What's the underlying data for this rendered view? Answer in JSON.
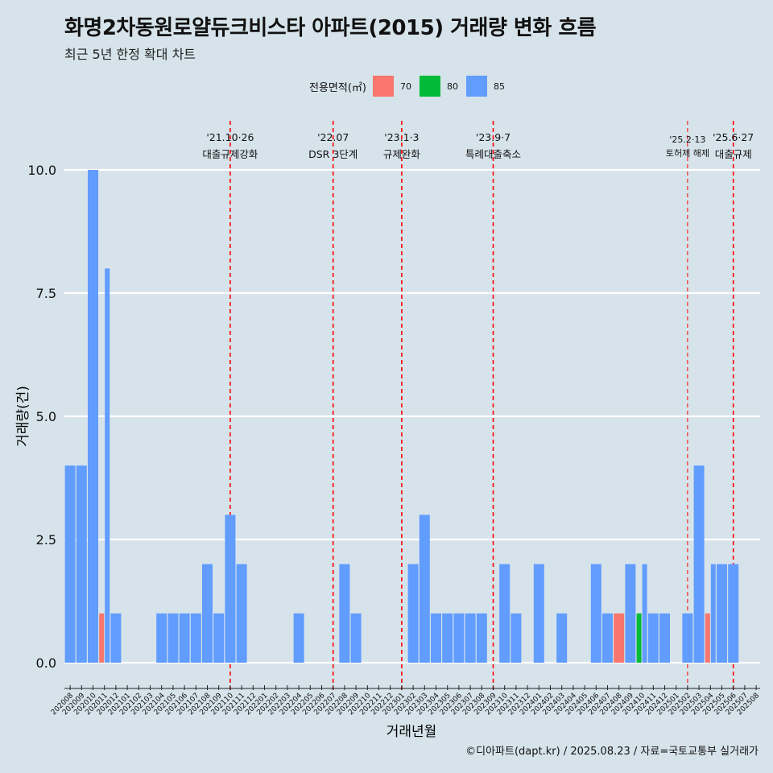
{
  "title": "화명2차동원로얄듀크비스타 아파트(2015) 거래량 변화 흐름",
  "subtitle": "최근 5년 한정 확대 차트",
  "caption": "©디아파트(dapt.kr) / 2025.08.23 / 자료=국토교통부 실거래가",
  "legend": {
    "title": "전용면적(㎡)",
    "items": [
      {
        "label": "70",
        "color": "#f8766d"
      },
      {
        "label": "80",
        "color": "#00ba38"
      },
      {
        "label": "85",
        "color": "#619cff"
      }
    ]
  },
  "chart_data": {
    "type": "bar",
    "stacked": true,
    "xlabel": "거래년월",
    "ylabel": "거래량(건)",
    "ylim": [
      0,
      10
    ],
    "yticks": [
      "0.0",
      "2.5",
      "5.0",
      "7.5",
      "10.0"
    ],
    "grid": "horizontal",
    "legend_position": "top",
    "categories": [
      "202008",
      "202009",
      "202010",
      "202011",
      "202012",
      "202101",
      "202102",
      "202103",
      "202104",
      "202105",
      "202106",
      "202107",
      "202108",
      "202109",
      "202110",
      "202111",
      "202112",
      "202201",
      "202202",
      "202203",
      "202204",
      "202205",
      "202206",
      "202207",
      "202208",
      "202209",
      "202210",
      "202211",
      "202212",
      "202301",
      "202302",
      "202303",
      "202304",
      "202305",
      "202306",
      "202307",
      "202308",
      "202309",
      "202310",
      "202311",
      "202312",
      "202401",
      "202402",
      "202403",
      "202404",
      "202405",
      "202406",
      "202407",
      "202408",
      "202409",
      "202410",
      "202411",
      "202412",
      "202501",
      "202502",
      "202503",
      "202504",
      "202505",
      "202506",
      "202507",
      "202508"
    ],
    "bars": [
      {
        "category": "202008",
        "series": "85",
        "value": 4,
        "slot": 0,
        "of": 1
      },
      {
        "category": "202009",
        "series": "85",
        "value": 4,
        "slot": 0,
        "of": 1
      },
      {
        "category": "202010",
        "series": "85",
        "value": 10,
        "slot": 0,
        "of": 1
      },
      {
        "category": "202011",
        "series": "70",
        "value": 1,
        "slot": 0,
        "of": 2
      },
      {
        "category": "202011",
        "series": "85",
        "value": 8,
        "slot": 1,
        "of": 2
      },
      {
        "category": "202012",
        "series": "85",
        "value": 1,
        "slot": 0,
        "of": 1
      },
      {
        "category": "202104",
        "series": "85",
        "value": 1,
        "slot": 0,
        "of": 1
      },
      {
        "category": "202105",
        "series": "85",
        "value": 1,
        "slot": 0,
        "of": 1
      },
      {
        "category": "202106",
        "series": "85",
        "value": 1,
        "slot": 0,
        "of": 1
      },
      {
        "category": "202107",
        "series": "85",
        "value": 1,
        "slot": 0,
        "of": 1
      },
      {
        "category": "202108",
        "series": "85",
        "value": 2,
        "slot": 0,
        "of": 1
      },
      {
        "category": "202109",
        "series": "85",
        "value": 1,
        "slot": 0,
        "of": 1
      },
      {
        "category": "202110",
        "series": "85",
        "value": 3,
        "slot": 0,
        "of": 1
      },
      {
        "category": "202111",
        "series": "85",
        "value": 2,
        "slot": 0,
        "of": 1
      },
      {
        "category": "202204",
        "series": "85",
        "value": 1,
        "slot": 0,
        "of": 1
      },
      {
        "category": "202208",
        "series": "85",
        "value": 2,
        "slot": 0,
        "of": 1
      },
      {
        "category": "202209",
        "series": "85",
        "value": 1,
        "slot": 0,
        "of": 1
      },
      {
        "category": "202302",
        "series": "85",
        "value": 2,
        "slot": 0,
        "of": 1
      },
      {
        "category": "202303",
        "series": "85",
        "value": 3,
        "slot": 0,
        "of": 1
      },
      {
        "category": "202304",
        "series": "85",
        "value": 1,
        "slot": 0,
        "of": 1
      },
      {
        "category": "202305",
        "series": "85",
        "value": 1,
        "slot": 0,
        "of": 1
      },
      {
        "category": "202306",
        "series": "85",
        "value": 1,
        "slot": 0,
        "of": 1
      },
      {
        "category": "202307",
        "series": "85",
        "value": 1,
        "slot": 0,
        "of": 1
      },
      {
        "category": "202308",
        "series": "85",
        "value": 1,
        "slot": 0,
        "of": 1
      },
      {
        "category": "202310",
        "series": "85",
        "value": 2,
        "slot": 0,
        "of": 1
      },
      {
        "category": "202311",
        "series": "85",
        "value": 1,
        "slot": 0,
        "of": 1
      },
      {
        "category": "202401",
        "series": "85",
        "value": 2,
        "slot": 0,
        "of": 1
      },
      {
        "category": "202403",
        "series": "85",
        "value": 1,
        "slot": 0,
        "of": 1
      },
      {
        "category": "202406",
        "series": "85",
        "value": 2,
        "slot": 0,
        "of": 1
      },
      {
        "category": "202407",
        "series": "85",
        "value": 1,
        "slot": 0,
        "of": 1
      },
      {
        "category": "202408",
        "series": "70",
        "value": 1,
        "slot": 0,
        "of": 1
      },
      {
        "category": "202409",
        "series": "85",
        "value": 2,
        "slot": 0,
        "of": 1
      },
      {
        "category": "202410",
        "series": "80",
        "value": 1,
        "slot": 0,
        "of": 2
      },
      {
        "category": "202410",
        "series": "85",
        "value": 2,
        "slot": 1,
        "of": 2
      },
      {
        "category": "202411",
        "series": "85",
        "value": 1,
        "slot": 0,
        "of": 1
      },
      {
        "category": "202412",
        "series": "85",
        "value": 1,
        "slot": 0,
        "of": 1
      },
      {
        "category": "202502",
        "series": "85",
        "value": 1,
        "slot": 0,
        "of": 1
      },
      {
        "category": "202503",
        "series": "85",
        "value": 4,
        "slot": 0,
        "of": 1
      },
      {
        "category": "202504",
        "series": "70",
        "value": 1,
        "slot": 0,
        "of": 2
      },
      {
        "category": "202504",
        "series": "85",
        "value": 2,
        "slot": 1,
        "of": 2
      },
      {
        "category": "202505",
        "series": "85",
        "value": 2,
        "slot": 0,
        "of": 1
      },
      {
        "category": "202506",
        "series": "85",
        "value": 2,
        "slot": 0,
        "of": 1
      }
    ],
    "events": [
      {
        "date": "202110",
        "label_date": "'21.10·26",
        "label": "대출규제강화"
      },
      {
        "date": "202207",
        "label_date": "'22.07",
        "label": "DSR 3단계"
      },
      {
        "date": "202301",
        "label_date": "'23.1·3",
        "label": "규제완화"
      },
      {
        "date": "202309",
        "label_date": "'23.9·7",
        "label": "특례대출축소"
      },
      {
        "date": "202502",
        "label_date": "'25.2·13",
        "label": "토허제 해제",
        "minor": true
      },
      {
        "date": "202506",
        "label_date": "'25.6·27",
        "label": "대출규제"
      }
    ]
  }
}
